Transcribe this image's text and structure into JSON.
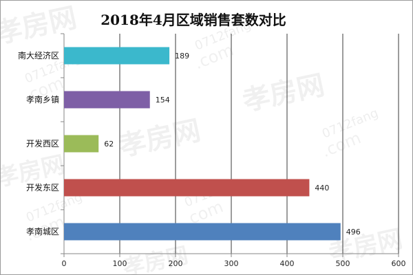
{
  "chart_data": {
    "type": "bar",
    "orientation": "horizontal",
    "title": "2018年4月区域销售套数对比",
    "categories": [
      "南大经济区",
      "孝南乡镇",
      "开发西区",
      "开发东区",
      "孝南城区"
    ],
    "values": [
      189,
      154,
      62,
      440,
      496
    ],
    "colors": [
      "#3BB8CC",
      "#7E5FA6",
      "#9BBB59",
      "#C0504D",
      "#4F81BD"
    ],
    "xlim": [
      0,
      600
    ],
    "xticks": [
      0,
      100,
      200,
      300,
      400,
      500,
      600
    ],
    "grid": true,
    "data_labels": true
  },
  "watermark": {
    "brand": "孝房网",
    "domain": "0712fang",
    "suffix": ".com"
  }
}
